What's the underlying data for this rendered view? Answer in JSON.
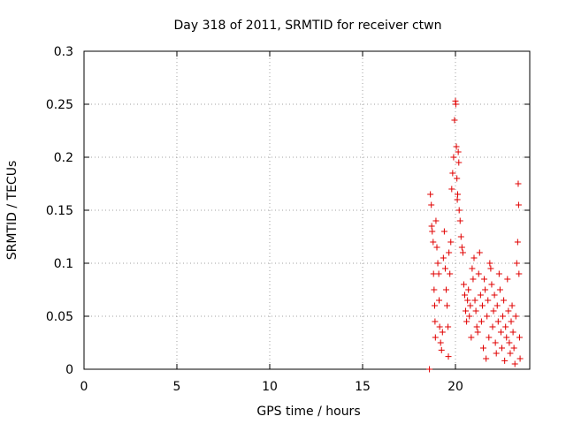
{
  "chart_data": {
    "type": "scatter",
    "title": "Day 318 of 2011, SRMTID for receiver ctwn",
    "xlabel": "GPS time / hours",
    "ylabel": "SRMTID / TECUs",
    "xlim": [
      0,
      24
    ],
    "ylim": [
      0,
      0.3
    ],
    "grid": true,
    "xticks": [
      0,
      5,
      10,
      15,
      20
    ],
    "xtick_labels": [
      "0",
      "5",
      "10",
      "15",
      "20"
    ],
    "yticks": [
      0,
      0.05,
      0.1,
      0.15,
      0.2,
      0.25,
      0.3
    ],
    "ytick_labels": [
      "0",
      "0.05",
      "0.1",
      "0.15",
      "0.2",
      "0.25",
      "0.3"
    ],
    "series": [
      {
        "name": "SRMTID",
        "color": "#e00000",
        "marker": "plus",
        "points": [
          [
            18.6,
            0.0
          ],
          [
            18.65,
            0.165
          ],
          [
            18.7,
            0.155
          ],
          [
            18.72,
            0.135
          ],
          [
            18.75,
            0.13
          ],
          [
            18.8,
            0.12
          ],
          [
            18.82,
            0.09
          ],
          [
            18.85,
            0.075
          ],
          [
            18.88,
            0.06
          ],
          [
            18.9,
            0.045
          ],
          [
            18.92,
            0.03
          ],
          [
            18.95,
            0.14
          ],
          [
            19.0,
            0.115
          ],
          [
            19.05,
            0.1
          ],
          [
            19.1,
            0.09
          ],
          [
            19.12,
            0.065
          ],
          [
            19.15,
            0.04
          ],
          [
            19.2,
            0.025
          ],
          [
            19.25,
            0.018
          ],
          [
            19.3,
            0.035
          ],
          [
            19.35,
            0.105
          ],
          [
            19.4,
            0.13
          ],
          [
            19.45,
            0.095
          ],
          [
            19.5,
            0.075
          ],
          [
            19.55,
            0.06
          ],
          [
            19.6,
            0.04
          ],
          [
            19.62,
            0.012
          ],
          [
            19.65,
            0.11
          ],
          [
            19.7,
            0.09
          ],
          [
            19.75,
            0.12
          ],
          [
            19.8,
            0.17
          ],
          [
            19.85,
            0.185
          ],
          [
            19.9,
            0.2
          ],
          [
            19.95,
            0.235
          ],
          [
            20.0,
            0.253
          ],
          [
            20.02,
            0.25
          ],
          [
            20.05,
            0.21
          ],
          [
            20.08,
            0.18
          ],
          [
            20.1,
            0.16
          ],
          [
            20.12,
            0.165
          ],
          [
            20.15,
            0.205
          ],
          [
            20.18,
            0.195
          ],
          [
            20.2,
            0.15
          ],
          [
            20.25,
            0.14
          ],
          [
            20.3,
            0.125
          ],
          [
            20.35,
            0.115
          ],
          [
            20.4,
            0.11
          ],
          [
            20.45,
            0.08
          ],
          [
            20.5,
            0.07
          ],
          [
            20.55,
            0.055
          ],
          [
            20.6,
            0.045
          ],
          [
            20.65,
            0.065
          ],
          [
            20.7,
            0.075
          ],
          [
            20.75,
            0.05
          ],
          [
            20.8,
            0.06
          ],
          [
            20.85,
            0.03
          ],
          [
            20.9,
            0.095
          ],
          [
            20.95,
            0.085
          ],
          [
            21.0,
            0.105
          ],
          [
            21.05,
            0.065
          ],
          [
            21.1,
            0.055
          ],
          [
            21.15,
            0.04
          ],
          [
            21.2,
            0.035
          ],
          [
            21.25,
            0.09
          ],
          [
            21.3,
            0.11
          ],
          [
            21.35,
            0.07
          ],
          [
            21.4,
            0.045
          ],
          [
            21.45,
            0.06
          ],
          [
            21.5,
            0.02
          ],
          [
            21.55,
            0.085
          ],
          [
            21.6,
            0.075
          ],
          [
            21.65,
            0.01
          ],
          [
            21.7,
            0.05
          ],
          [
            21.75,
            0.065
          ],
          [
            21.8,
            0.03
          ],
          [
            21.85,
            0.1
          ],
          [
            21.9,
            0.095
          ],
          [
            21.95,
            0.08
          ],
          [
            22.0,
            0.04
          ],
          [
            22.05,
            0.055
          ],
          [
            22.1,
            0.07
          ],
          [
            22.15,
            0.025
          ],
          [
            22.2,
            0.015
          ],
          [
            22.25,
            0.06
          ],
          [
            22.3,
            0.045
          ],
          [
            22.35,
            0.09
          ],
          [
            22.4,
            0.075
          ],
          [
            22.45,
            0.035
          ],
          [
            22.5,
            0.02
          ],
          [
            22.55,
            0.05
          ],
          [
            22.6,
            0.065
          ],
          [
            22.65,
            0.008
          ],
          [
            22.7,
            0.04
          ],
          [
            22.75,
            0.03
          ],
          [
            22.8,
            0.085
          ],
          [
            22.85,
            0.055
          ],
          [
            22.9,
            0.025
          ],
          [
            22.95,
            0.015
          ],
          [
            23.0,
            0.045
          ],
          [
            23.05,
            0.06
          ],
          [
            23.1,
            0.035
          ],
          [
            23.15,
            0.02
          ],
          [
            23.2,
            0.005
          ],
          [
            23.25,
            0.05
          ],
          [
            23.3,
            0.1
          ],
          [
            23.35,
            0.12
          ],
          [
            23.38,
            0.175
          ],
          [
            23.4,
            0.155
          ],
          [
            23.42,
            0.09
          ],
          [
            23.45,
            0.03
          ],
          [
            23.48,
            0.01
          ]
        ]
      }
    ]
  }
}
